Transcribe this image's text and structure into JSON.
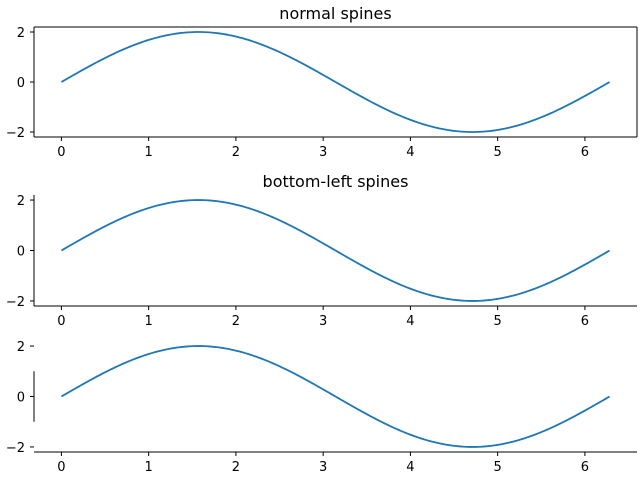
{
  "chart_data": [
    {
      "type": "line",
      "title": "normal spines",
      "spines": [
        "left",
        "right",
        "top",
        "bottom"
      ],
      "xlim": [
        -0.314,
        6.597
      ],
      "ylim": [
        -2.2,
        2.2
      ],
      "xticks": [
        0,
        1,
        2,
        3,
        4,
        5,
        6
      ],
      "xtick_labels": [
        "0",
        "1",
        "2",
        "3",
        "4",
        "5",
        "6"
      ],
      "yticks": [
        -2,
        0,
        2
      ],
      "ytick_labels": [
        "−2",
        "0",
        "2"
      ],
      "series": [
        {
          "function": "2*sin(x)",
          "x_range": [
            0,
            6.2832
          ],
          "color": "#1f77b4"
        }
      ]
    },
    {
      "type": "line",
      "title": "bottom-left spines",
      "spines": [
        "left",
        "bottom"
      ],
      "xlim": [
        -0.314,
        6.597
      ],
      "ylim": [
        -2.2,
        2.2
      ],
      "xticks": [
        0,
        1,
        2,
        3,
        4,
        5,
        6
      ],
      "xtick_labels": [
        "0",
        "1",
        "2",
        "3",
        "4",
        "5",
        "6"
      ],
      "yticks": [
        -2,
        0,
        2
      ],
      "ytick_labels": [
        "−2",
        "0",
        "2"
      ],
      "series": [
        {
          "function": "2*sin(x)",
          "x_range": [
            0,
            6.2832
          ],
          "color": "#1f77b4"
        }
      ]
    },
    {
      "type": "line",
      "title": "",
      "spines": [
        "left",
        "bottom"
      ],
      "spine_bounds": {
        "left": [
          -1,
          1
        ],
        "bottom": [
          -0.314,
          6.597
        ]
      },
      "xlim": [
        -0.314,
        6.597
      ],
      "ylim": [
        -2.2,
        2.2
      ],
      "xticks": [
        0,
        1,
        2,
        3,
        4,
        5,
        6
      ],
      "xtick_labels": [
        "0",
        "1",
        "2",
        "3",
        "4",
        "5",
        "6"
      ],
      "yticks": [
        -2,
        0,
        2
      ],
      "ytick_labels": [
        "−2",
        "0",
        "2"
      ],
      "series": [
        {
          "function": "2*sin(x)",
          "x_range": [
            0,
            6.2832
          ],
          "color": "#1f77b4"
        }
      ]
    }
  ]
}
